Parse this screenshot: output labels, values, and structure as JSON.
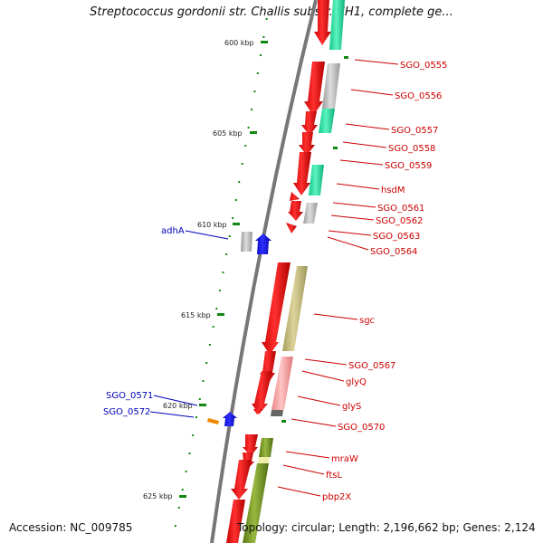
{
  "title": "Streptococcus gordonii str. Challis substr. CH1, complete ge...",
  "footer": {
    "accession_text": "Accession: NC_009785",
    "summary_text": "Topology: circular; Length: 2,196,662 bp; Genes: 2,124"
  },
  "colors": {
    "backbone": "#777777",
    "forward_gene": "#ee0000",
    "reverse_gene": "#1010ee",
    "forward_label": "#cc0000",
    "reverse_label": "#0000bb",
    "scale_tick": "#118811",
    "cog_mint": "#22e6a0",
    "cog_gray": "#bbbbbb",
    "cog_khaki": "#c8c07a",
    "cog_pink": "#f4a0a0",
    "cog_olive": "#7a9a28",
    "cog_orange": "#ee8800"
  },
  "scale_labels": [
    "600 kbp",
    "605 kbp",
    "610 kbp",
    "615 kbp",
    "620 kbp",
    "625 kbp"
  ],
  "forward_gene_labels": [
    "SGO_0555",
    "SGO_0556",
    "SGO_0557",
    "SGO_0558",
    "SGO_0559",
    "hsdM",
    "SGO_0561",
    "SGO_0562",
    "SGO_0563",
    "SGO_0564",
    "sgc",
    "SGO_0567",
    "glyQ",
    "glyS",
    "SGO_0570",
    "mraW",
    "ftsL",
    "pbp2X"
  ],
  "reverse_gene_labels": [
    "adhA",
    "SGO_0571",
    "SGO_0572"
  ]
}
